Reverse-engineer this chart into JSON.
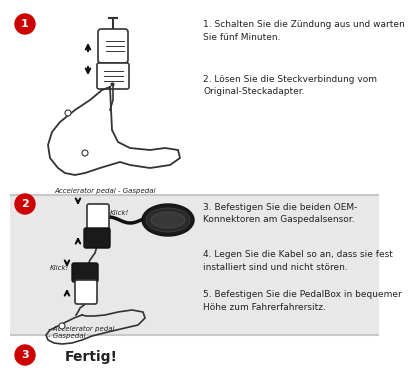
{
  "background_color": "#ffffff",
  "section2_bg": "#e8e8e8",
  "divider_color": "#c8c8c8",
  "circle_color": "#cc0000",
  "circle_text_color": "#ffffff",
  "step1_title": "1. Schalten Sie die Zündung aus und warten\nSie fünf Minuten.",
  "step2_title": "2. Lösen Sie die Steckverbindung vom\nOriginal-Steckadapter.",
  "step3_title": "3. Befestigen Sie die beiden OEM-\nKonnektoren am Gaspedalsensor.",
  "step4_title": "4. Legen Sie die Kabel so an, dass sie fest\ninstalliert sind und nicht stören.",
  "step5_title": "5. Befestigen Sie die PedalBox in bequemer\nHöhe zum Fahrerfahrersitz.",
  "step6_title": "Fertig!",
  "caption1": "Accelerator pedal - Gaspedal",
  "caption2": "- Accelerator pedal\n- Gaspedal",
  "label_klick1": "Klick!",
  "label_klick2": "Klick!",
  "text_fontsize": 6.5,
  "caption_fontsize": 5.0,
  "circle_fontsize": 8,
  "fertig_fontsize": 10,
  "dark_color": "#222222",
  "line_color": "#333333"
}
